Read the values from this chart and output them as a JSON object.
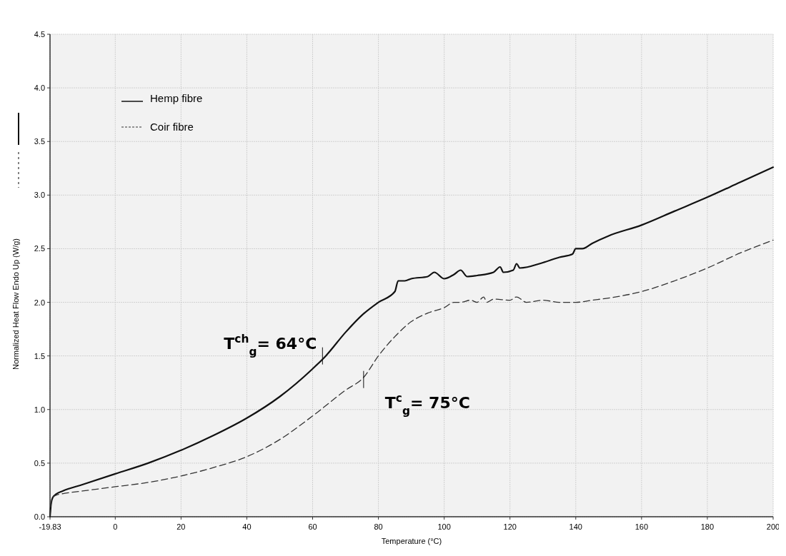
{
  "chart_data": {
    "type": "line",
    "xlabel": "Temperature (°C)",
    "ylabel": "Normalized Heat Flow Endo Up (W/g)",
    "xlim": [
      -19.83,
      200
    ],
    "xticks": [
      {
        "value": -19.83,
        "label": "-19.83"
      },
      0,
      20,
      40,
      60,
      80,
      100,
      120,
      140,
      160,
      180,
      200
    ],
    "ylim": [
      0,
      4.5
    ],
    "yticks": [
      {
        "value": 0,
        "label": "0.0"
      },
      0.5,
      {
        "value": 1,
        "label": "1.0"
      },
      1.5,
      {
        "value": 2,
        "label": "2.0"
      },
      2.5,
      {
        "value": 3,
        "label": "3.0"
      },
      3.5,
      {
        "value": 4,
        "label": "4.0"
      },
      4.5
    ],
    "grid": true,
    "legend": "top left",
    "series": [
      {
        "name": "Hemp fibre",
        "color": "#111111",
        "line_style": "solid",
        "x": [
          -19.83,
          -19.5,
          -19,
          -18,
          -16,
          -10,
          0,
          10,
          20,
          30,
          40,
          50,
          60,
          64,
          70,
          75,
          80,
          85,
          86,
          88,
          90,
          95,
          97,
          100,
          103,
          105,
          107,
          110,
          115,
          117,
          118,
          121,
          122,
          123,
          130,
          135,
          139,
          140,
          142,
          145,
          150,
          160,
          170,
          180,
          190,
          200
        ],
        "values": [
          0,
          0.12,
          0.18,
          0.21,
          0.24,
          0.3,
          0.4,
          0.5,
          0.62,
          0.76,
          0.92,
          1.12,
          1.38,
          1.5,
          1.72,
          1.88,
          2.0,
          2.1,
          2.2,
          2.2,
          2.22,
          2.24,
          2.28,
          2.22,
          2.26,
          2.3,
          2.24,
          2.25,
          2.28,
          2.33,
          2.28,
          2.3,
          2.36,
          2.32,
          2.37,
          2.42,
          2.45,
          2.5,
          2.5,
          2.55,
          2.62,
          2.72,
          2.85,
          2.98,
          3.12,
          3.26
        ]
      },
      {
        "name": "Coir fibre",
        "color": "#333333",
        "line_style": "dashed",
        "x": [
          -19.83,
          -19.5,
          -19,
          -18,
          -15,
          -10,
          0,
          10,
          20,
          30,
          40,
          50,
          60,
          70,
          75.5,
          80,
          85,
          90,
          95,
          100,
          103,
          105,
          108,
          110,
          112,
          113,
          115,
          120,
          122,
          125,
          130,
          135,
          140,
          145,
          150,
          160,
          170,
          180,
          190,
          200
        ],
        "values": [
          0,
          0.12,
          0.18,
          0.2,
          0.22,
          0.24,
          0.28,
          0.32,
          0.38,
          0.46,
          0.56,
          0.72,
          0.94,
          1.18,
          1.3,
          1.5,
          1.68,
          1.82,
          1.9,
          1.95,
          2.0,
          2.0,
          2.02,
          2.0,
          2.05,
          2.0,
          2.03,
          2.02,
          2.05,
          2.0,
          2.02,
          2.0,
          2.0,
          2.02,
          2.04,
          2.1,
          2.2,
          2.32,
          2.46,
          2.58
        ]
      }
    ],
    "annotations": [
      {
        "text": "T$^{ch}$$_{g}$= 64°C",
        "x": 63,
        "y": 1.5
      },
      {
        "text": "T$^{c}$$_{g}$= 75°C",
        "x": 75.5,
        "y": 1.28
      }
    ]
  }
}
